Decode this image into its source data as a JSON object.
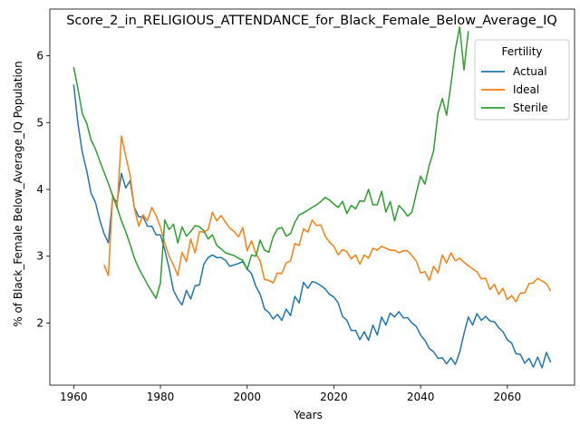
{
  "chart_data": {
    "type": "line",
    "title": "Score_2_in_RELIGIOUS_ATTENDANCE_for_Black_Female_Below_Average_IQ",
    "xlabel": "Years",
    "ylabel": "% of Black_Female Below_Average_IQ Population",
    "xlim": [
      1954.5,
      2075.5
    ],
    "ylim": [
      1.07,
      6.7
    ],
    "xticks": [
      1960,
      1980,
      2000,
      2020,
      2040,
      2060
    ],
    "yticks": [
      2,
      3,
      4,
      5,
      6
    ],
    "grid": false,
    "legend": {
      "title": "Fertility",
      "position": "top-right"
    },
    "series": [
      {
        "name": "Actual",
        "color": "#1f77b4",
        "x": [
          1960,
          1961,
          1962,
          1963,
          1964,
          1965,
          1966,
          1967,
          1968,
          1969,
          1970,
          1971,
          1972,
          1973,
          1974,
          1975,
          1976,
          1977,
          1978,
          1979,
          1980,
          1981,
          1982,
          1983,
          1984,
          1985,
          1986,
          1987,
          1988,
          1989,
          1990,
          1991,
          1992,
          1993,
          1994,
          1995,
          1996,
          1997,
          1998,
          1999,
          2000,
          2001,
          2002,
          2003,
          2004,
          2005,
          2006,
          2007,
          2008,
          2009,
          2010,
          2011,
          2012,
          2013,
          2014,
          2015,
          2016,
          2017,
          2018,
          2019,
          2020,
          2021,
          2022,
          2023,
          2024,
          2025,
          2026,
          2027,
          2028,
          2029,
          2030,
          2031,
          2032,
          2033,
          2034,
          2035,
          2036,
          2037,
          2038,
          2039,
          2040,
          2041,
          2042,
          2043,
          2044,
          2045,
          2046,
          2047,
          2048,
          2049,
          2050,
          2051,
          2052,
          2053,
          2054,
          2055,
          2056,
          2057,
          2058,
          2059,
          2060,
          2061,
          2062,
          2063,
          2064,
          2065,
          2066,
          2067,
          2068,
          2069,
          2070
        ],
        "values": [
          5.57,
          4.98,
          4.55,
          4.28,
          3.94,
          3.81,
          3.55,
          3.34,
          3.2,
          3.88,
          3.81,
          4.24,
          4.02,
          4.13,
          3.73,
          3.59,
          3.59,
          3.45,
          3.45,
          3.32,
          3.32,
          3.1,
          2.82,
          2.49,
          2.36,
          2.27,
          2.49,
          2.36,
          2.56,
          2.57,
          2.88,
          2.98,
          3.02,
          2.98,
          2.98,
          2.94,
          2.85,
          2.87,
          2.89,
          2.92,
          2.81,
          2.74,
          2.55,
          2.43,
          2.21,
          2.16,
          2.06,
          2.13,
          2.04,
          2.21,
          2.11,
          2.4,
          2.3,
          2.61,
          2.52,
          2.62,
          2.6,
          2.56,
          2.51,
          2.43,
          2.39,
          2.3,
          2.1,
          2.04,
          1.89,
          1.89,
          1.75,
          1.87,
          1.74,
          1.97,
          1.82,
          2.09,
          1.97,
          2.15,
          2.09,
          2.17,
          2.08,
          2.08,
          2.0,
          1.95,
          1.82,
          1.74,
          1.62,
          1.57,
          1.47,
          1.48,
          1.39,
          1.48,
          1.38,
          1.56,
          1.84,
          2.09,
          1.97,
          2.14,
          2.04,
          2.1,
          2.03,
          2.02,
          1.93,
          1.87,
          1.75,
          1.7,
          1.54,
          1.53,
          1.4,
          1.47,
          1.34,
          1.49,
          1.33,
          1.56,
          1.41
        ]
      },
      {
        "name": "Ideal",
        "color": "#ff7f0e",
        "x": [
          1967,
          1968,
          1969,
          1970,
          1971,
          1972,
          1973,
          1974,
          1975,
          1976,
          1977,
          1978,
          1979,
          1980,
          1981,
          1982,
          1983,
          1984,
          1985,
          1986,
          1987,
          1988,
          1989,
          1990,
          1991,
          1992,
          1993,
          1994,
          1995,
          1996,
          1997,
          1998,
          1999,
          2000,
          2001,
          2002,
          2003,
          2004,
          2005,
          2006,
          2007,
          2008,
          2009,
          2010,
          2011,
          2012,
          2013,
          2014,
          2015,
          2016,
          2017,
          2018,
          2019,
          2020,
          2021,
          2022,
          2023,
          2024,
          2025,
          2026,
          2027,
          2028,
          2029,
          2030,
          2031,
          2032,
          2033,
          2034,
          2035,
          2036,
          2037,
          2038,
          2039,
          2040,
          2041,
          2042,
          2043,
          2044,
          2045,
          2046,
          2047,
          2048,
          2049,
          2050,
          2051,
          2052,
          2053,
          2054,
          2055,
          2056,
          2057,
          2058,
          2059,
          2060,
          2061,
          2062,
          2063,
          2064,
          2065,
          2066,
          2067,
          2068,
          2069,
          2070
        ],
        "values": [
          2.87,
          2.71,
          3.92,
          3.72,
          4.8,
          4.5,
          4.22,
          3.72,
          3.45,
          3.62,
          3.53,
          3.73,
          3.61,
          3.44,
          3.2,
          3.0,
          2.87,
          2.71,
          3.06,
          2.92,
          3.26,
          3.05,
          3.37,
          3.36,
          3.4,
          3.66,
          3.53,
          3.61,
          3.51,
          3.42,
          3.37,
          3.29,
          3.43,
          3.08,
          3.23,
          3.04,
          2.93,
          2.65,
          2.64,
          2.6,
          2.75,
          2.74,
          2.9,
          2.93,
          3.19,
          3.16,
          3.41,
          3.36,
          3.54,
          3.46,
          3.47,
          3.3,
          3.21,
          3.15,
          3.02,
          3.1,
          3.07,
          2.96,
          3.02,
          2.88,
          3.02,
          2.97,
          3.12,
          3.09,
          3.15,
          3.12,
          3.09,
          3.09,
          3.05,
          3.08,
          3.08,
          3.01,
          2.93,
          2.75,
          2.77,
          2.64,
          2.85,
          2.75,
          3.02,
          2.9,
          3.05,
          2.93,
          2.97,
          2.91,
          2.86,
          2.81,
          2.77,
          2.66,
          2.67,
          2.5,
          2.58,
          2.43,
          2.52,
          2.35,
          2.41,
          2.32,
          2.45,
          2.45,
          2.59,
          2.6,
          2.67,
          2.63,
          2.59,
          2.48
        ]
      },
      {
        "name": "Sterile",
        "color": "#2ca02c",
        "x": [
          1960,
          1961,
          1962,
          1963,
          1964,
          1965,
          1966,
          1967,
          1968,
          1969,
          1970,
          1971,
          1972,
          1973,
          1974,
          1975,
          1976,
          1977,
          1978,
          1979,
          1980,
          1981,
          1982,
          1983,
          1984,
          1985,
          1986,
          1987,
          1988,
          1989,
          1990,
          1991,
          1992,
          1993,
          1994,
          1995,
          1996,
          1997,
          1998,
          1999,
          2000,
          2001,
          2002,
          2003,
          2004,
          2005,
          2006,
          2007,
          2008,
          2009,
          2010,
          2011,
          2012,
          2013,
          2014,
          2015,
          2016,
          2017,
          2018,
          2019,
          2020,
          2021,
          2022,
          2023,
          2024,
          2025,
          2026,
          2027,
          2028,
          2029,
          2030,
          2031,
          2032,
          2033,
          2034,
          2035,
          2036,
          2037,
          2038,
          2039,
          2040,
          2041,
          2042,
          2043,
          2044,
          2045,
          2046,
          2047,
          2048,
          2049,
          2050,
          2051
        ],
        "values": [
          5.83,
          5.5,
          5.13,
          4.99,
          4.74,
          4.61,
          4.43,
          4.26,
          4.09,
          3.9,
          3.73,
          3.53,
          3.37,
          3.18,
          2.97,
          2.82,
          2.7,
          2.58,
          2.47,
          2.37,
          2.6,
          3.54,
          3.4,
          3.48,
          3.2,
          3.44,
          3.3,
          3.37,
          3.46,
          3.44,
          3.38,
          3.26,
          3.32,
          3.16,
          3.11,
          3.05,
          3.03,
          3.01,
          2.97,
          2.94,
          2.8,
          3.02,
          3.0,
          3.24,
          3.09,
          3.06,
          3.29,
          3.41,
          3.43,
          3.3,
          3.34,
          3.51,
          3.62,
          3.65,
          3.69,
          3.73,
          3.77,
          3.82,
          3.88,
          3.84,
          3.78,
          3.73,
          3.82,
          3.64,
          3.76,
          3.71,
          3.83,
          3.82,
          4.0,
          3.77,
          3.77,
          3.97,
          3.66,
          3.82,
          3.53,
          3.76,
          3.69,
          3.6,
          3.66,
          3.94,
          4.2,
          4.08,
          4.36,
          4.58,
          5.14,
          5.36,
          5.11,
          5.57,
          6.09,
          6.43,
          5.79,
          6.37
        ]
      }
    ]
  }
}
